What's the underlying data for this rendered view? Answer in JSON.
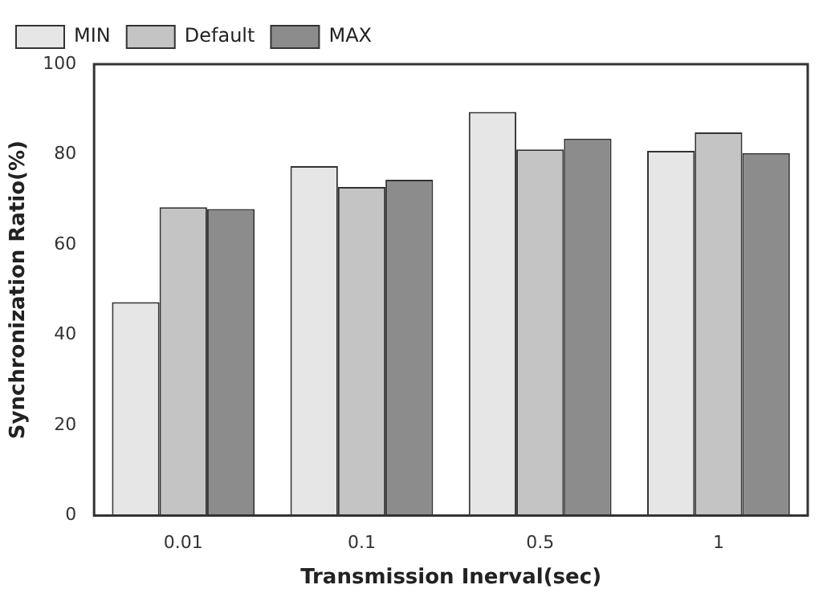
{
  "chart_data": {
    "type": "bar",
    "xlabel": "Transmission Inerval(sec)",
    "ylabel": "Synchronization Ratio(%)",
    "categories": [
      "0.01",
      "0.1",
      "0.5",
      "1"
    ],
    "series": [
      {
        "name": "MIN",
        "color": "#e6e6e6",
        "values": [
          47.3,
          77.4,
          89.4,
          80.8
        ]
      },
      {
        "name": "Default",
        "color": "#c4c4c4",
        "values": [
          68.3,
          72.8,
          81.1,
          84.9
        ]
      },
      {
        "name": "MAX",
        "color": "#8c8c8c",
        "values": [
          67.9,
          74.4,
          83.5,
          80.3
        ]
      }
    ],
    "ylim": [
      0,
      100
    ],
    "yticks": [
      0,
      20,
      40,
      60,
      80,
      100
    ],
    "grid": false,
    "legend": "top left"
  }
}
